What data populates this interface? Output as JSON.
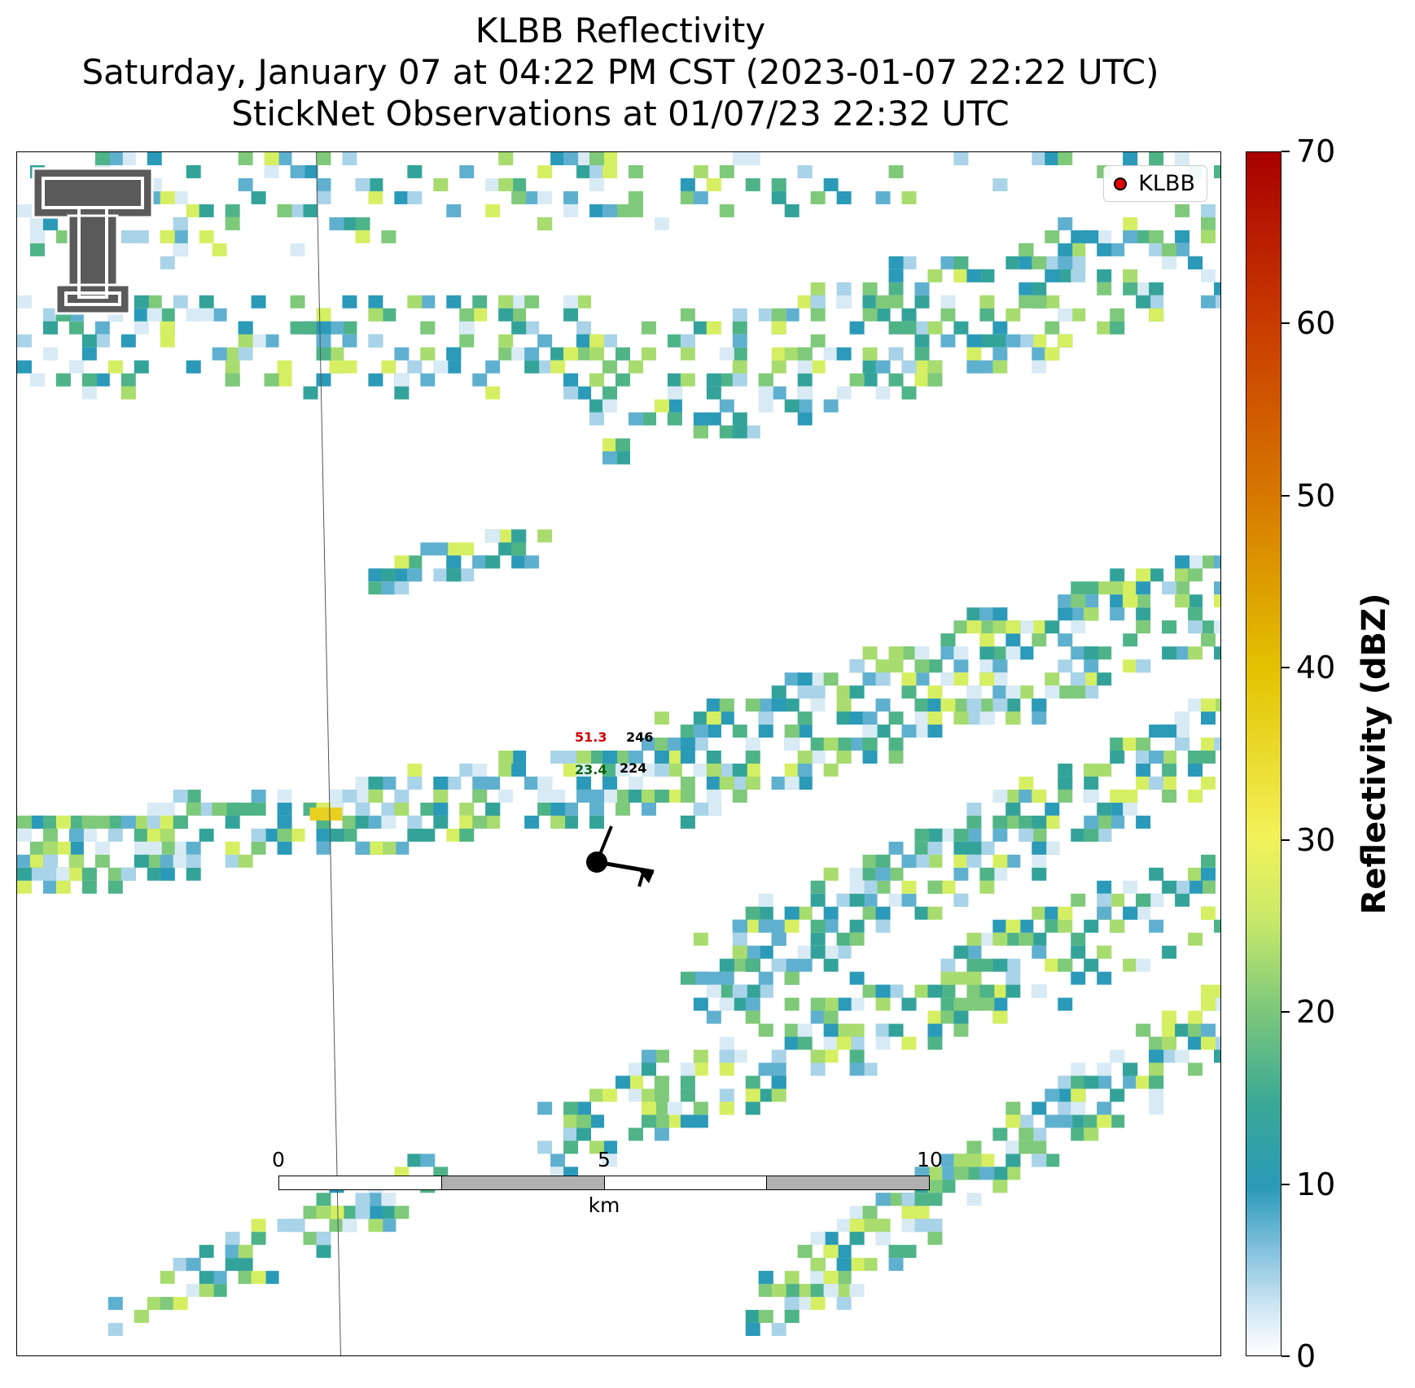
{
  "title": {
    "line1": "KLBB Reflectivity",
    "line2": "Saturday, January 07 at 04:22 PM CST (2023-01-07 22:22 UTC)",
    "line3": "StickNet Observations at 01/07/23 22:32 UTC"
  },
  "legend": {
    "label": "KLBB",
    "marker_color": "#e00000"
  },
  "logo": {
    "name": "texas-tech-double-t-logo",
    "color": "#5a5a5a"
  },
  "station": {
    "temperature": "51.3",
    "dewpoint": "23.4",
    "upper_value": "246",
    "lower_value": "224"
  },
  "scale_bar": {
    "ticks": [
      "0",
      "5",
      "10"
    ],
    "unit": "km"
  },
  "colorbar": {
    "label": "Reflectivity (dBZ)",
    "range": [
      0,
      70
    ],
    "ticks": [
      "0",
      "10",
      "20",
      "30",
      "40",
      "50",
      "60",
      "70"
    ]
  },
  "colors": {
    "temperature_text": "#cc0000",
    "dewpoint_text": "#006400",
    "scale_gray": "#b0b0b0"
  }
}
